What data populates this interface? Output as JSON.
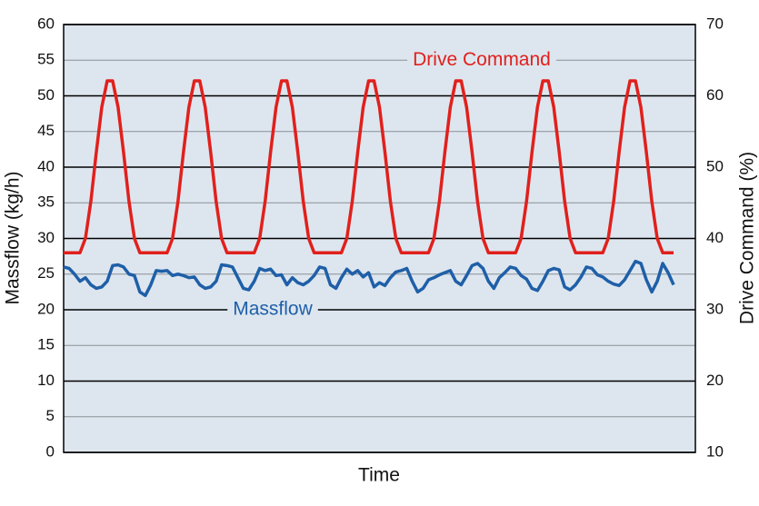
{
  "chart_data": {
    "type": "line",
    "xlabel": "Time",
    "ylabel": "Massflow (kg/h)",
    "y2label": "Drive Command (%)",
    "x": [
      0,
      1,
      2,
      3,
      4,
      5,
      6,
      7,
      8,
      9,
      10,
      11,
      12,
      13,
      14,
      15,
      16,
      17,
      18,
      19,
      20,
      21,
      22,
      23,
      24,
      25,
      26,
      27,
      28,
      29,
      30,
      31,
      32,
      33,
      34,
      35,
      36,
      37,
      38,
      39,
      40,
      41,
      42,
      43,
      44,
      45,
      46,
      47,
      48,
      49,
      50,
      51,
      52,
      53,
      54,
      55,
      56,
      57,
      58,
      59,
      60,
      61,
      62,
      63,
      64,
      65,
      66,
      67,
      68,
      69,
      70,
      71,
      72,
      73,
      74,
      75,
      76,
      77,
      78,
      79,
      80,
      81,
      82,
      83,
      84,
      85,
      86,
      87,
      88,
      89,
      90,
      91,
      92,
      93,
      94,
      95,
      96,
      97,
      98,
      99,
      100,
      101,
      102,
      103,
      104,
      105,
      106,
      107,
      108,
      109,
      110,
      111,
      112
    ],
    "xlim": [
      0,
      116
    ],
    "ylim": [
      0,
      60
    ],
    "yticks": [
      0,
      5,
      10,
      15,
      20,
      25,
      30,
      35,
      40,
      45,
      50,
      55,
      60
    ],
    "y2lim": [
      10,
      70
    ],
    "y2ticks": [
      10,
      20,
      30,
      40,
      50,
      60,
      70
    ],
    "grid": true,
    "series": [
      {
        "name": "Drive Command",
        "color": "#e1201c",
        "axis": "y2",
        "values": [
          38,
          38,
          38,
          38,
          40,
          45.2,
          52.1,
          58.4,
          62.1,
          62.1,
          58.4,
          52.1,
          45.2,
          40,
          38,
          38,
          38,
          38,
          38,
          38,
          40,
          45.2,
          52.1,
          58.4,
          62.1,
          62.1,
          58.4,
          52.1,
          45.2,
          40,
          38,
          38,
          38,
          38,
          38,
          38,
          40,
          45.2,
          52.1,
          58.4,
          62.1,
          62.1,
          58.4,
          52.1,
          45.2,
          40,
          38,
          38,
          38,
          38,
          38,
          38,
          40,
          45.2,
          52.1,
          58.4,
          62.1,
          62.1,
          58.4,
          52.1,
          45.2,
          40,
          38,
          38,
          38,
          38,
          38,
          38,
          40,
          45.2,
          52.1,
          58.4,
          62.1,
          62.1,
          58.4,
          52.1,
          45.2,
          40,
          38,
          38,
          38,
          38,
          38,
          38,
          40,
          45.2,
          52.1,
          58.4,
          62.1,
          62.1,
          58.4,
          52.1,
          45.2,
          40,
          38,
          38,
          38,
          38,
          38,
          38,
          40,
          45.2,
          52.1,
          58.4,
          62.1,
          62.1,
          58.4,
          52.1,
          45.2,
          40,
          38,
          38,
          38
        ]
      },
      {
        "name": "Massflow",
        "color": "#1f5fa8",
        "values": [
          26,
          25.8,
          25,
          24,
          24.5,
          23.5,
          23,
          23.2,
          24,
          26.2,
          26.3,
          26,
          25,
          24.8,
          22.5,
          22,
          23.5,
          25.5,
          25.4,
          25.5,
          24.8,
          25,
          24.8,
          24.5,
          24.6,
          23.5,
          23,
          23.2,
          24,
          26.3,
          26.2,
          26,
          24.5,
          23,
          22.8,
          24,
          25.8,
          25.5,
          25.7,
          24.8,
          24.9,
          23.5,
          24.5,
          23.8,
          23.5,
          24,
          24.8,
          26,
          25.8,
          23.5,
          23,
          24.5,
          25.7,
          25,
          25.5,
          24.6,
          25.2,
          23.2,
          23.8,
          23.4,
          24.5,
          25.3,
          25.5,
          25.8,
          24,
          22.5,
          23,
          24.2,
          24.5,
          24.9,
          25.2,
          25.5,
          24,
          23.5,
          24.8,
          26.2,
          26.5,
          25.8,
          24,
          23,
          24.5,
          25.2,
          26,
          25.8,
          24.8,
          24.3,
          23,
          22.7,
          24,
          25.5,
          25.8,
          25.6,
          23.2,
          22.8,
          23.5,
          24.6,
          26,
          25.8,
          24.9,
          24.6,
          24,
          23.6,
          23.4,
          24.2,
          25.5,
          26.8,
          26.5,
          24.2,
          22.5,
          24,
          26.5,
          25.2,
          23.5
        ]
      }
    ]
  }
}
